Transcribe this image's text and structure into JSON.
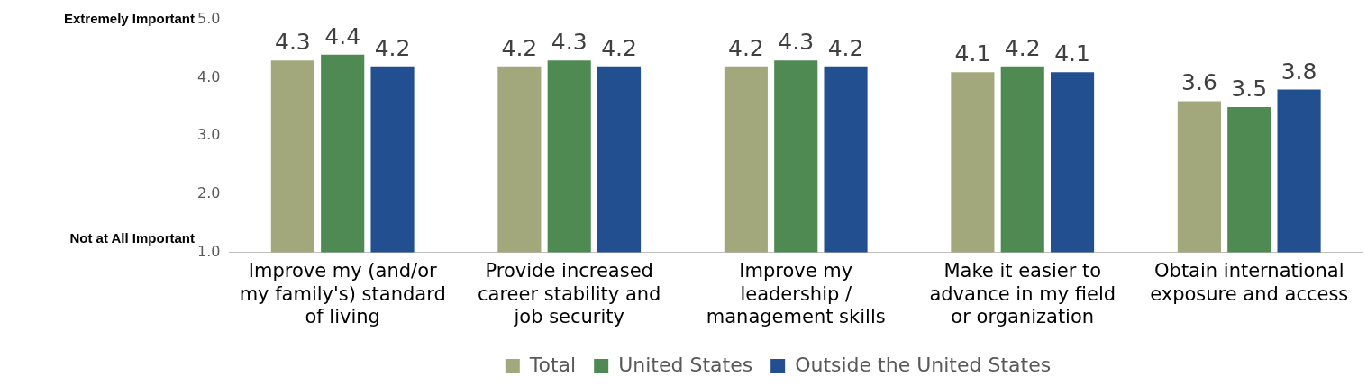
{
  "chart_data": {
    "type": "bar",
    "categories": [
      "Improve my (and/or my family's) standard of living",
      "Provide increased career stability and job security",
      "Improve my leadership / management skills",
      "Make it easier to advance in my field or organization",
      "Obtain international exposure and access"
    ],
    "series": [
      {
        "name": "Total",
        "color": "#a2a87c",
        "values": [
          4.3,
          4.2,
          4.2,
          4.1,
          3.6
        ]
      },
      {
        "name": "United States",
        "color": "#4e8a52",
        "values": [
          4.4,
          4.3,
          4.3,
          4.2,
          3.5
        ]
      },
      {
        "name": "Outside the United States",
        "color": "#224f8f",
        "values": [
          4.2,
          4.2,
          4.2,
          4.1,
          3.8
        ]
      }
    ],
    "ylim": [
      1,
      5
    ],
    "yticks": [
      {
        "value": 1,
        "label": "1.0"
      },
      {
        "value": 2,
        "label": "2.0"
      },
      {
        "value": 3,
        "label": "3.0"
      },
      {
        "value": 4,
        "label": "4.0"
      },
      {
        "value": 5,
        "label": "5.0"
      }
    ],
    "annotations": [
      "Extremely Important",
      "Not at All Important"
    ],
    "data_labels": true,
    "grid": false,
    "legend": "bottom"
  }
}
